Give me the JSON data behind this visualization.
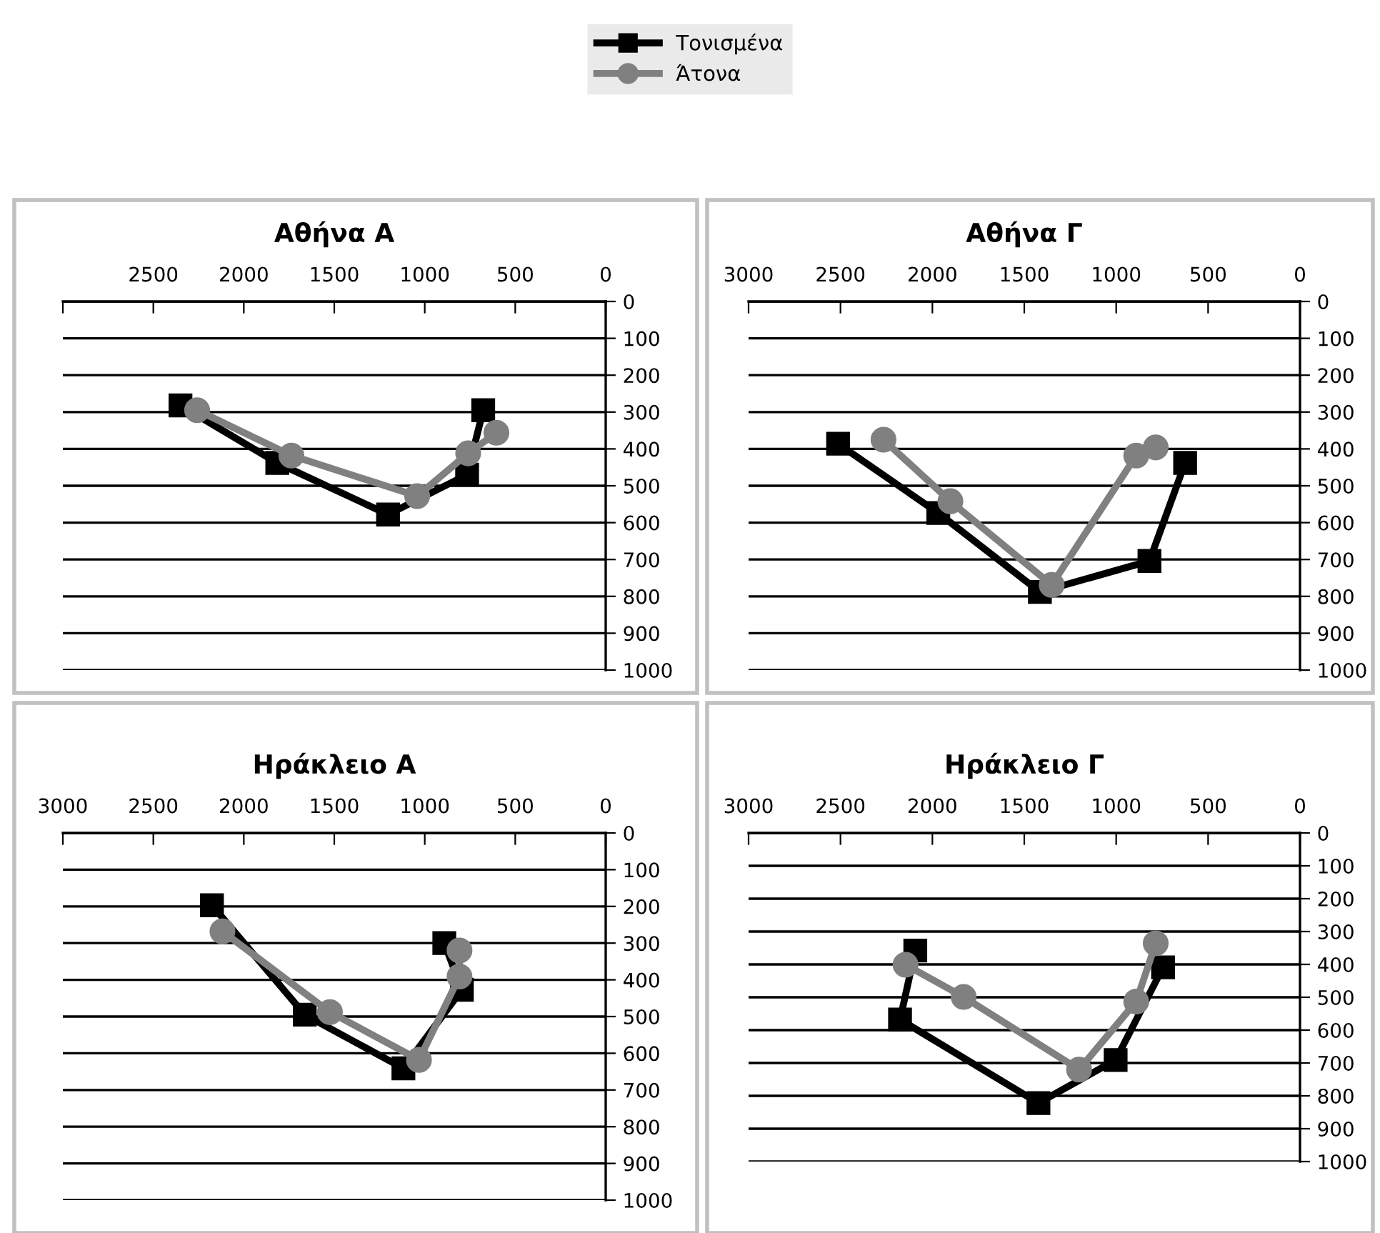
{
  "chart_data": [
    {
      "type": "line",
      "title": "Αθήνα Α",
      "legend": "top",
      "grid": "y",
      "xlim": [
        3000,
        0
      ],
      "ylim": [
        1000,
        0
      ],
      "xticks": [
        {
          "value": 3000,
          "label": null
        },
        2500,
        2000,
        1500,
        1000,
        500,
        0
      ],
      "yticks": [
        0,
        100,
        200,
        300,
        400,
        500,
        600,
        700,
        800,
        900,
        1000
      ],
      "series": [
        {
          "name": "Τονισμένα",
          "color": "#000000",
          "marker": "square",
          "x": [
            2350,
            1815,
            1203,
            766,
            677
          ],
          "values": [
            282,
            438,
            578,
            470,
            295
          ]
        },
        {
          "name": "Άτονα",
          "color": "#808080",
          "marker": "circle",
          "x": [
            2258,
            1737,
            1042,
            760,
            604
          ],
          "values": [
            295,
            418,
            528,
            412,
            356
          ]
        }
      ]
    },
    {
      "type": "line",
      "title": "Αθήνα Γ",
      "grid": "y",
      "xlim": [
        3000,
        0
      ],
      "ylim": [
        1000,
        0
      ],
      "xticks": [
        3000,
        2500,
        2000,
        1500,
        1000,
        500,
        0
      ],
      "yticks": [
        0,
        100,
        200,
        300,
        400,
        500,
        600,
        700,
        800,
        900,
        1000
      ],
      "series": [
        {
          "color": "#000000",
          "marker": "square",
          "x": [
            2513,
            1968,
            1415,
            819,
            625
          ],
          "values": [
            386,
            574,
            788,
            704,
            438
          ]
        },
        {
          "color": "#808080",
          "marker": "circle",
          "x": [
            2266,
            1902,
            1351,
            891,
            785
          ],
          "values": [
            375,
            542,
            769,
            418,
            396
          ]
        }
      ]
    },
    {
      "type": "line",
      "title": "Ηράκλειο Α",
      "grid": "y",
      "xlim": [
        3000,
        0
      ],
      "ylim": [
        1000,
        0
      ],
      "xticks": [
        3000,
        2500,
        2000,
        1500,
        1000,
        500,
        0
      ],
      "yticks": [
        0,
        100,
        200,
        300,
        400,
        500,
        600,
        700,
        800,
        900,
        1000
      ],
      "series": [
        {
          "color": "#000000",
          "marker": "square",
          "x": [
            2176,
            1663,
            1118,
            795,
            892
          ],
          "values": [
            197,
            495,
            641,
            427,
            300
          ]
        },
        {
          "color": "#808080",
          "marker": "circle",
          "x": [
            2118,
            1524,
            1032,
            808,
            808
          ],
          "values": [
            268,
            488,
            618,
            391,
            320
          ]
        }
      ]
    },
    {
      "type": "line",
      "title": "Ηράκλειο Γ",
      "grid": "y",
      "xlim": [
        3000,
        0
      ],
      "ylim": [
        1000,
        0
      ],
      "xticks": [
        3000,
        2500,
        2000,
        1500,
        1000,
        500,
        0
      ],
      "yticks": [
        0,
        100,
        200,
        300,
        400,
        500,
        600,
        700,
        800,
        900,
        1000
      ],
      "series": [
        {
          "color": "#000000",
          "marker": "square",
          "x": [
            2093,
            2176,
            1423,
            1003,
            745
          ],
          "values": [
            358,
            568,
            822,
            691,
            409
          ]
        },
        {
          "color": "#808080",
          "marker": "circle",
          "x": [
            2146,
            1830,
            1202,
            891,
            785
          ],
          "values": [
            401,
            499,
            720,
            513,
            336
          ]
        }
      ]
    }
  ]
}
